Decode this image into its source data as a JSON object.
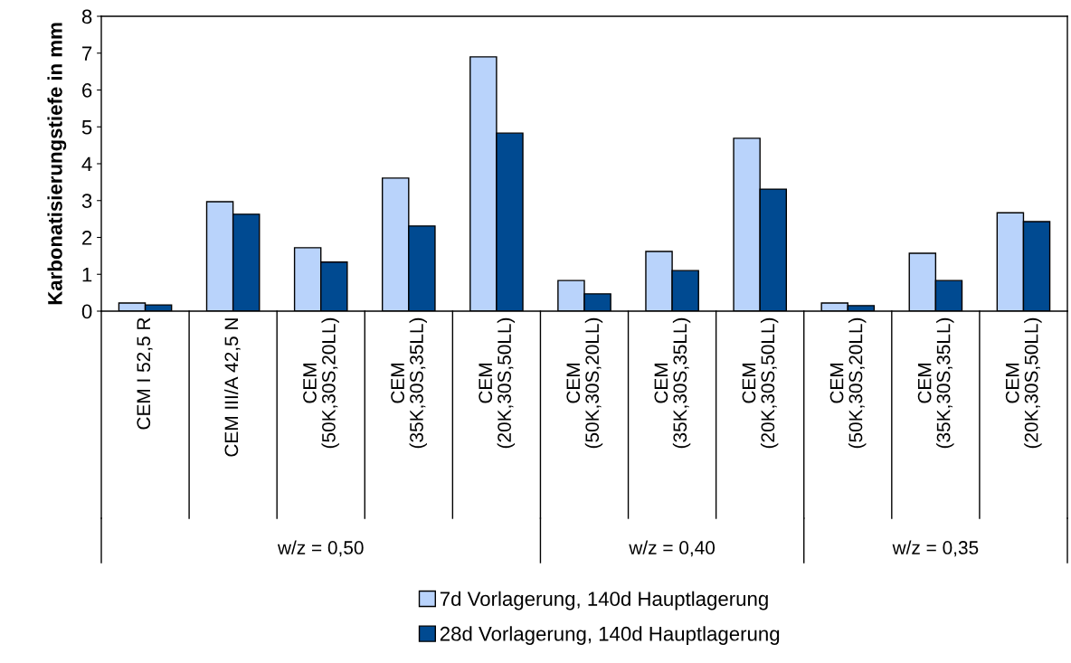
{
  "chart_data": {
    "type": "bar",
    "ylabel": "Karbonatisierungstiefe in mm",
    "categories": [
      "CEM I 52,5 R",
      "CEM III/A 42,5 N",
      "CEM\n(50K,30S,20LL)",
      "CEM\n(35K,30S,35LL)",
      "CEM\n(20K,30S,50LL)",
      "CEM\n(50K,30S,20LL)",
      "CEM\n(35K,30S,35LL)",
      "CEM\n(20K,30S,50LL)",
      "CEM\n(50K,30S,20LL)",
      "CEM\n(35K,30S,35LL)",
      "CEM\n(20K,30S,50LL)"
    ],
    "series": [
      {
        "name": "7d Vorlagerung, 140d Hauptlagerung",
        "color": "#b9d3fb",
        "values": [
          0.22,
          2.97,
          1.72,
          3.61,
          6.9,
          0.83,
          1.62,
          4.69,
          0.22,
          1.57,
          2.67
        ]
      },
      {
        "name": "28d Vorlagerung, 140d Hauptlagerung",
        "color": "#004a91",
        "values": [
          0.17,
          2.63,
          1.33,
          2.31,
          4.83,
          0.47,
          1.1,
          3.31,
          0.15,
          0.83,
          2.43
        ]
      }
    ],
    "annotations": [
      "w/z = 0,50",
      "w/z = 0,40",
      "w/z = 0,35"
    ],
    "ylim": [
      0,
      8
    ],
    "yticks": [
      0,
      1,
      2,
      3,
      4,
      5,
      6,
      7,
      8
    ],
    "grid": false,
    "legend": "bottom"
  }
}
